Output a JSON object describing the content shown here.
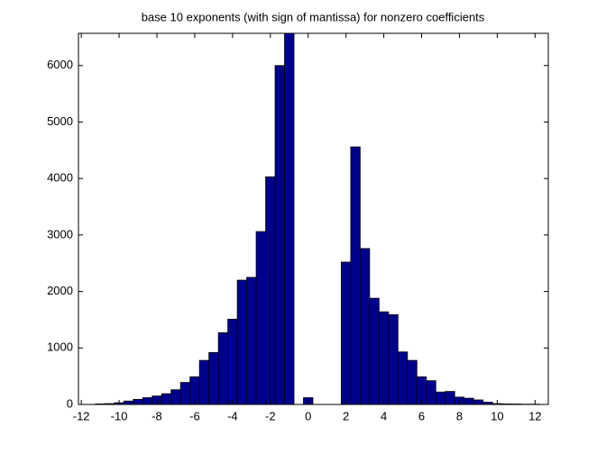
{
  "chart_data": {
    "type": "histogram",
    "title": "base 10 exponents (with sign of mantissa) for nonzero coefficients",
    "bins": [
      -11.25,
      -10.75,
      -10.25,
      -9.75,
      -9.25,
      -8.75,
      -8.25,
      -7.75,
      -7.25,
      -6.75,
      -6.25,
      -5.75,
      -5.25,
      -4.75,
      -4.25,
      -3.75,
      -3.25,
      -2.75,
      -2.25,
      -1.75,
      -1.25,
      -0.75,
      -0.25,
      0.25,
      0.75,
      1.25,
      1.75,
      2.25,
      2.75,
      3.25,
      3.75,
      4.25,
      4.75,
      5.25,
      5.75,
      6.25,
      6.75,
      7.25,
      7.75,
      8.25,
      8.75,
      9.25,
      9.75,
      10.25,
      10.75,
      11.25,
      11.75,
      12.25
    ],
    "counts": [
      10,
      15,
      30,
      60,
      90,
      120,
      150,
      190,
      260,
      390,
      490,
      780,
      920,
      1270,
      1510,
      2200,
      2250,
      3060,
      4030,
      6000,
      6570,
      0,
      120,
      0,
      0,
      0,
      2520,
      4560,
      2760,
      1880,
      1640,
      1590,
      930,
      780,
      490,
      420,
      220,
      230,
      130,
      110,
      80,
      40,
      15,
      10,
      8,
      5,
      5
    ],
    "color": "#00008f",
    "xlim": [
      -12.15,
      12.7
    ],
    "xticks": [
      -12,
      -10,
      -8,
      -6,
      -4,
      -2,
      0,
      2,
      4,
      6,
      8,
      10,
      12
    ],
    "ylim": [
      0,
      6570
    ],
    "yticks": [
      0,
      1000,
      2000,
      3000,
      4000,
      5000,
      6000
    ]
  }
}
